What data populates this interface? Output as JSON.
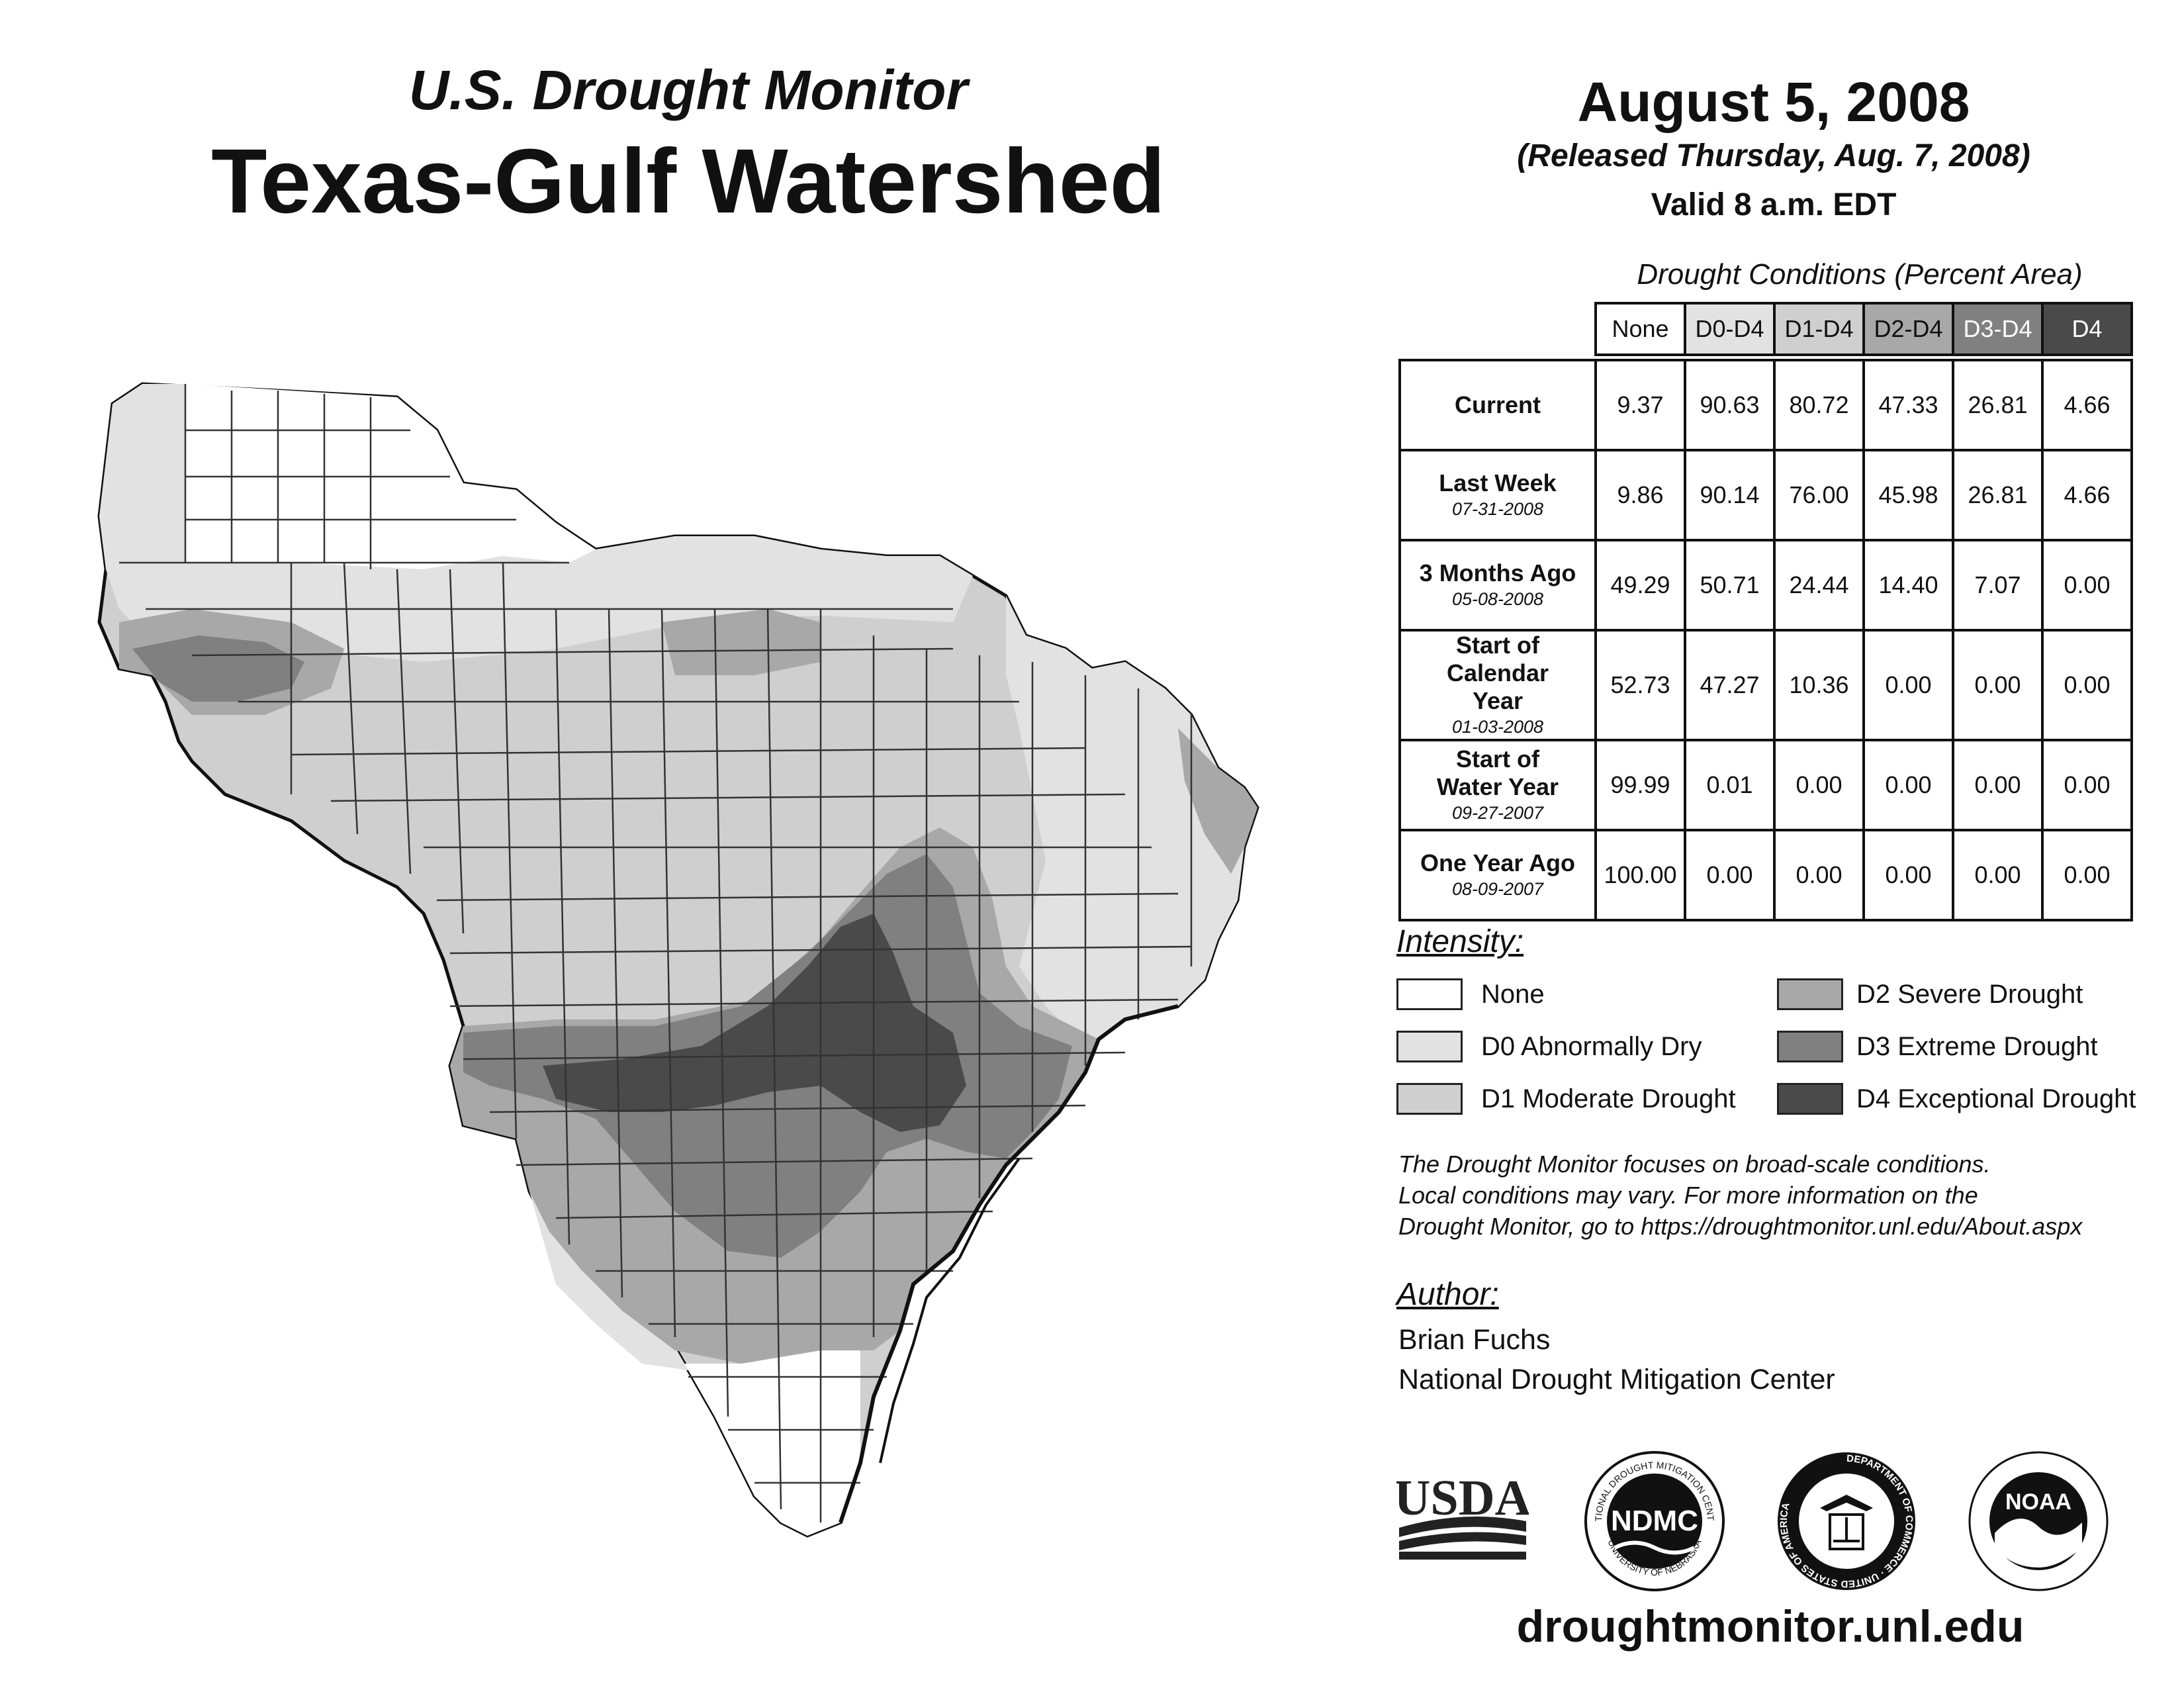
{
  "header": {
    "subtitle": "U.S. Drought Monitor",
    "title": "Texas-Gulf Watershed",
    "date": "August 5, 2008",
    "released": "(Released Thursday, Aug. 7, 2008)",
    "valid": "Valid 8 a.m. EDT"
  },
  "table": {
    "caption": "Drought Conditions (Percent Area)",
    "columns": [
      "None",
      "D0-D4",
      "D1-D4",
      "D2-D4",
      "D3-D4",
      "D4"
    ],
    "rows": [
      {
        "label": "Current",
        "sub": "",
        "values": [
          "9.37",
          "90.63",
          "80.72",
          "47.33",
          "26.81",
          "4.66"
        ]
      },
      {
        "label": "Last Week",
        "sub": "07-31-2008",
        "values": [
          "9.86",
          "90.14",
          "76.00",
          "45.98",
          "26.81",
          "4.66"
        ]
      },
      {
        "label": "3 Months Ago",
        "sub": "05-08-2008",
        "values": [
          "49.29",
          "50.71",
          "24.44",
          "14.40",
          "7.07",
          "0.00"
        ]
      },
      {
        "label": "Start of Calendar Year",
        "sub": "01-03-2008",
        "values": [
          "52.73",
          "47.27",
          "10.36",
          "0.00",
          "0.00",
          "0.00"
        ]
      },
      {
        "label": "Start of Water Year",
        "sub": "09-27-2007",
        "values": [
          "99.99",
          "0.01",
          "0.00",
          "0.00",
          "0.00",
          "0.00"
        ]
      },
      {
        "label": "One Year Ago",
        "sub": "08-09-2007",
        "values": [
          "100.00",
          "0.00",
          "0.00",
          "0.00",
          "0.00",
          "0.00"
        ]
      }
    ]
  },
  "legend": {
    "title": "Intensity:",
    "items": [
      {
        "label": "None",
        "color": "#ffffff"
      },
      {
        "label": "D0 Abnormally Dry",
        "color": "#e2e2e2"
      },
      {
        "label": "D1 Moderate Drought",
        "color": "#cfcfcf"
      },
      {
        "label": "D2 Severe Drought",
        "color": "#a8a8a8"
      },
      {
        "label": "D3 Extreme Drought",
        "color": "#808080"
      },
      {
        "label": "D4 Exceptional Drought",
        "color": "#4a4a4a"
      }
    ]
  },
  "disclaimer": {
    "line1": "The Drought Monitor focuses on broad-scale conditions.",
    "line2": "Local conditions may vary. For more information on the",
    "line3": "Drought Monitor, go to https://droughtmonitor.unl.edu/About.aspx"
  },
  "author": {
    "title": "Author:",
    "name": "Brian Fuchs",
    "org": "National Drought Mitigation Center"
  },
  "logos": {
    "usda": "USDA",
    "ndmc": "NDMC",
    "ndmc_ring_top": "NATIONAL DROUGHT MITIGATION CENTER",
    "ndmc_ring_bottom": "UNIVERSITY OF NEBRASKA",
    "doc_ring": "DEPARTMENT OF COMMERCE · UNITED STATES OF AMERICA",
    "noaa": "NOAA"
  },
  "website": "droughtmonitor.unl.edu"
}
